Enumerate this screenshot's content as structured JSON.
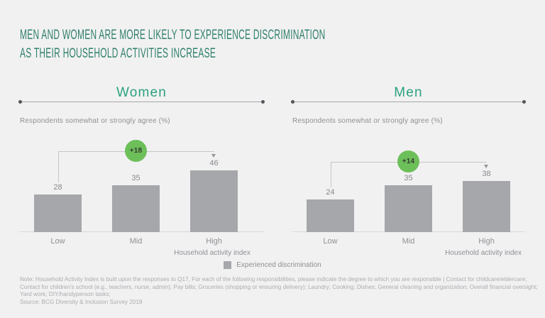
{
  "title": {
    "line1": "MEN AND WOMEN ARE MORE LIKELY TO EXPERIENCE DISCRIMINATION",
    "line2": "AS THEIR HOUSEHOLD ACTIVITIES INCREASE"
  },
  "legend": {
    "label": "Experienced discrimination"
  },
  "notes": {
    "lines": [
      "Note: Household Activity Index is built upon the responses to Q17, For each of the following responsibilities, please indicate the degree to which you are responsible | Contact for childcare/eldercare;",
      "Contact for children's school (e.g., teachers, nurse, admin); Pay bills; Groceries (shopping or ensuring delivery); Laundry; Cooking; Dishes; General cleaning and organization; Overall financial oversight;",
      "Yard work; DIY/handyperson tasks;"
    ],
    "source": "Source: BCG Diversity & Inclusion Survey 2018"
  },
  "colors": {
    "background": "#f1f1f2",
    "title_green": "#2f7f6a",
    "header_green": "#2ba27d",
    "bar_gray": "#a6a7aa",
    "delta_green": "#6dbf59",
    "label_gray": "#8f9094",
    "note_gray": "#abacaf"
  },
  "chart_data": [
    {
      "type": "bar",
      "title": "Women",
      "subtitle": "Respondents somewhat or strongly agree (%)",
      "categories": [
        "Low",
        "Mid",
        "High"
      ],
      "values": [
        28,
        35,
        46
      ],
      "delta_annotation": {
        "label": "+18",
        "from": "Low",
        "to": "High"
      },
      "xlabel": "Household activity index",
      "series_label": "Experienced discrimination",
      "ylim": [
        0,
        50
      ],
      "grid": false,
      "legend_position": "bottom-center"
    },
    {
      "type": "bar",
      "title": "Men",
      "subtitle": "Respondents somewhat or strongly agree (%)",
      "categories": [
        "Low",
        "Mid",
        "High"
      ],
      "values": [
        24,
        35,
        38
      ],
      "delta_annotation": {
        "label": "+14",
        "from": "Low",
        "to": "High"
      },
      "xlabel": "Household activity index",
      "series_label": "Experienced discrimination",
      "ylim": [
        0,
        50
      ],
      "grid": false,
      "legend_position": "bottom-center"
    }
  ]
}
